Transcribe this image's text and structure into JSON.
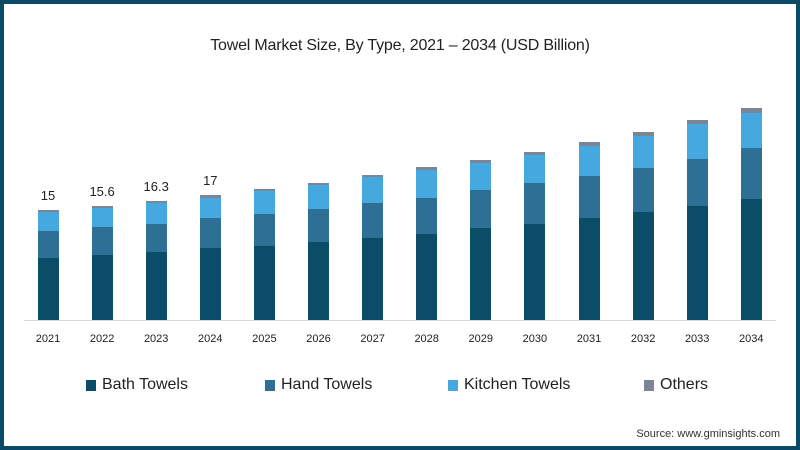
{
  "chart_data": {
    "type": "bar",
    "stacked": true,
    "title": "Towel Market Size, By Type, 2021 – 2034 (USD Billion)",
    "xlabel": "",
    "ylabel": "",
    "grid": false,
    "legend_position": "bottom",
    "categories": [
      "2021",
      "2022",
      "2023",
      "2024",
      "2025",
      "2026",
      "2027",
      "2028",
      "2029",
      "2030",
      "2031",
      "2032",
      "2033",
      "2034"
    ],
    "series": [
      {
        "name": "Bath Towels",
        "color": "#0b4d68",
        "values": [
          8.4,
          8.9,
          9.3,
          9.8,
          10.1,
          10.6,
          11.2,
          11.7,
          12.5,
          13.1,
          13.9,
          14.7,
          15.5,
          16.5
        ]
      },
      {
        "name": "Hand Towels",
        "color": "#2e6f95",
        "values": [
          3.7,
          3.8,
          3.8,
          4.1,
          4.4,
          4.5,
          4.8,
          5.0,
          5.2,
          5.6,
          5.7,
          6.0,
          6.5,
          7.0
        ]
      },
      {
        "name": "Kitchen Towels",
        "color": "#45a8de",
        "values": [
          2.7,
          2.6,
          2.9,
          2.8,
          3.1,
          3.3,
          3.5,
          3.8,
          3.7,
          3.8,
          4.2,
          4.4,
          4.7,
          4.8
        ]
      },
      {
        "name": "Others",
        "color": "#7b8595",
        "values": [
          0.2,
          0.3,
          0.3,
          0.3,
          0.3,
          0.3,
          0.3,
          0.4,
          0.4,
          0.4,
          0.5,
          0.5,
          0.6,
          0.6
        ]
      }
    ],
    "data_labels": [
      {
        "category": "2021",
        "text": "15"
      },
      {
        "category": "2022",
        "text": "15.6"
      },
      {
        "category": "2023",
        "text": "16.3"
      },
      {
        "category": "2024",
        "text": "17"
      }
    ],
    "ylim": [
      0,
      30
    ]
  },
  "source": "Source: www.gminsights.com"
}
